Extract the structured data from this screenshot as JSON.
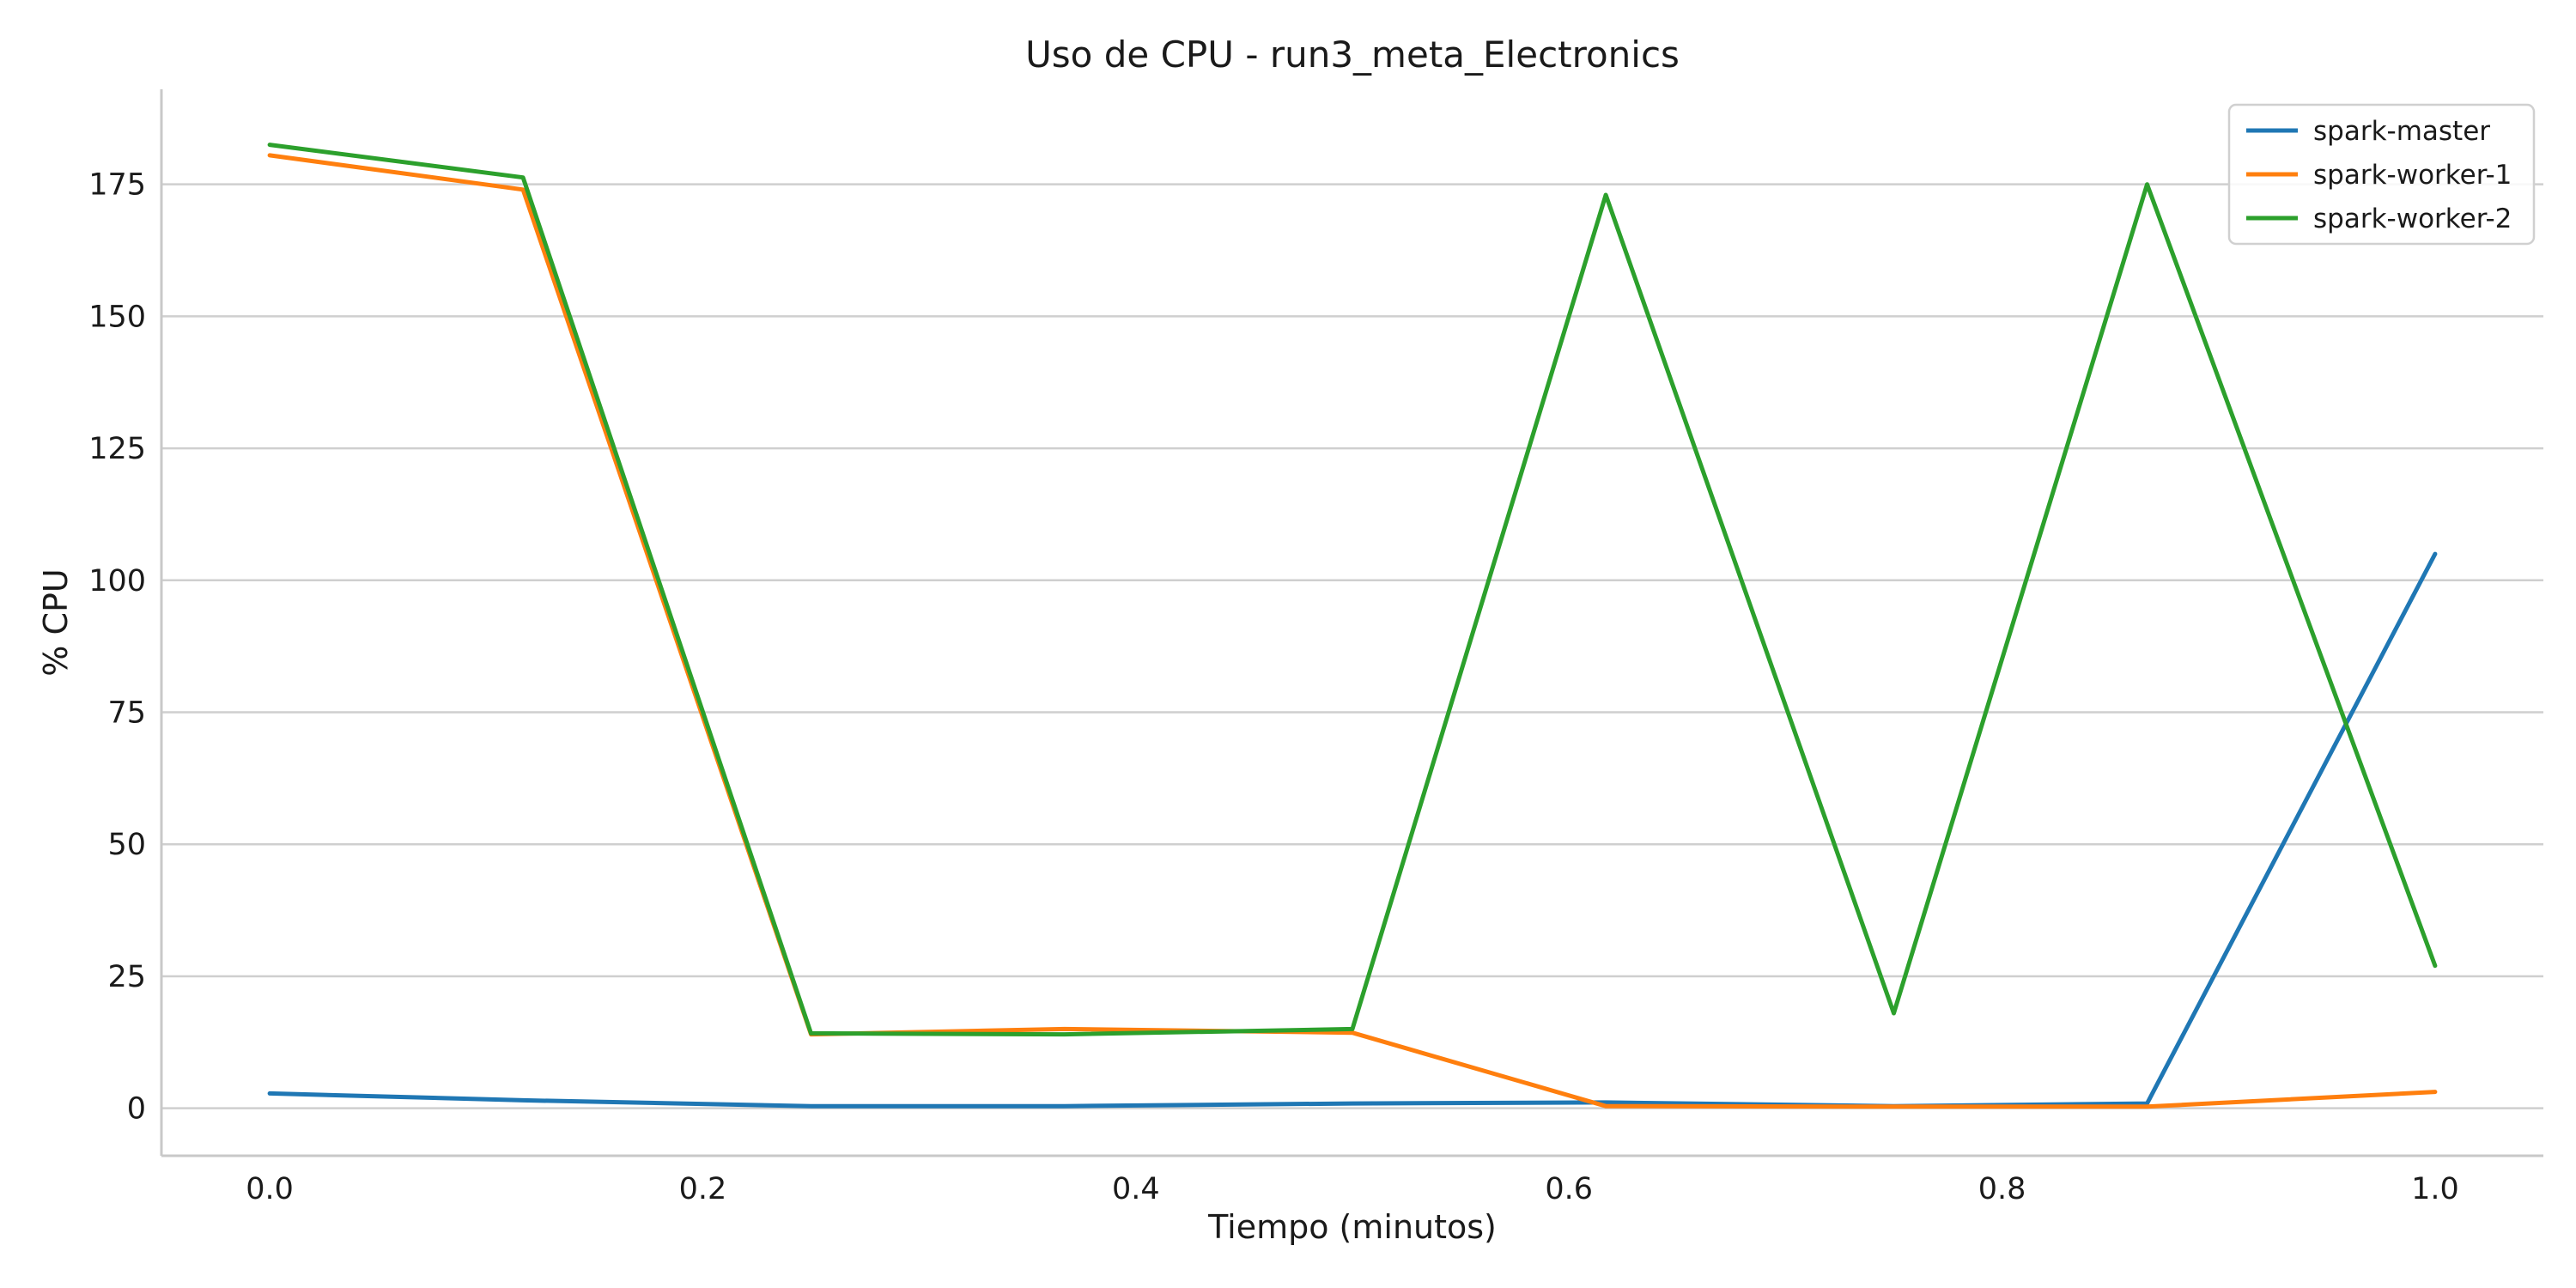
{
  "chart_data": {
    "type": "line",
    "title": "Uso de CPU - run3_meta_Electronics",
    "xlabel": "Tiempo (minutos)",
    "ylabel": "% CPU",
    "xlim": [
      -0.05,
      1.05
    ],
    "ylim": [
      -9,
      193
    ],
    "xticks": [
      0.0,
      0.2,
      0.4,
      0.6,
      0.8,
      1.0
    ],
    "xtick_labels": [
      "0.0",
      "0.2",
      "0.4",
      "0.6",
      "0.8",
      "1.0"
    ],
    "yticks": [
      0,
      25,
      50,
      75,
      100,
      125,
      150,
      175
    ],
    "ytick_labels": [
      "0",
      "25",
      "50",
      "75",
      "100",
      "125",
      "150",
      "175"
    ],
    "grid": "horizontal",
    "legend_position": "top-right",
    "x": [
      0.0,
      0.117,
      0.25,
      0.367,
      0.5,
      0.617,
      0.75,
      0.867,
      1.0
    ],
    "series": [
      {
        "name": "spark-master",
        "color": "#1f77b4",
        "values": [
          2.8,
          1.5,
          0.4,
          0.4,
          0.9,
          1.1,
          0.4,
          0.9,
          105
        ]
      },
      {
        "name": "spark-worker-1",
        "color": "#ff7f0e",
        "values": [
          180.5,
          174,
          14,
          15,
          14.3,
          0.4,
          0.3,
          0.3,
          3.1
        ]
      },
      {
        "name": "spark-worker-2",
        "color": "#2ca02c",
        "values": [
          182.5,
          176.3,
          14.2,
          14,
          15,
          173,
          18,
          175,
          27
        ]
      }
    ]
  }
}
